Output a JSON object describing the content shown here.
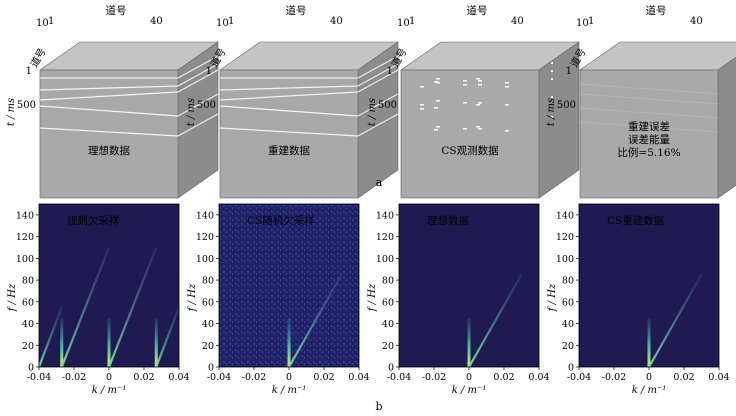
{
  "row_a": {
    "axis_top_label": "道号",
    "axis_top_ticks": [
      "10",
      "1",
      "40"
    ],
    "axis_left_label": "t / ms",
    "axis_left_ticks": [
      "1",
      "500"
    ],
    "panels": [
      {
        "caption": "理想数据"
      },
      {
        "caption": "重建数据"
      },
      {
        "caption": "CS观测数据"
      },
      {
        "caption_lines": [
          "重建误差",
          "误差能量",
          "比例=5.16%"
        ]
      }
    ],
    "label": "a"
  },
  "row_b": {
    "ylabel": "f / Hz",
    "xlabel": "k / m⁻¹",
    "yticks": [
      0,
      20,
      40,
      60,
      80,
      100,
      120,
      140
    ],
    "xticks": [
      "-0.04",
      "-0.02",
      "0",
      "0.02",
      "0.04"
    ],
    "panels": [
      {
        "title": "规则欠采样"
      },
      {
        "title": "CS随机欠采样"
      },
      {
        "title": "理想数据"
      },
      {
        "title": "CS重建数据"
      }
    ],
    "label": "b"
  },
  "colors": {
    "cube_front": "#a9a9a9",
    "cube_top": "#c4c4c4",
    "cube_side": "#8c8c8c",
    "spectrum_bg": "#1f1a52",
    "spectrum_hot": "#9be06a"
  }
}
